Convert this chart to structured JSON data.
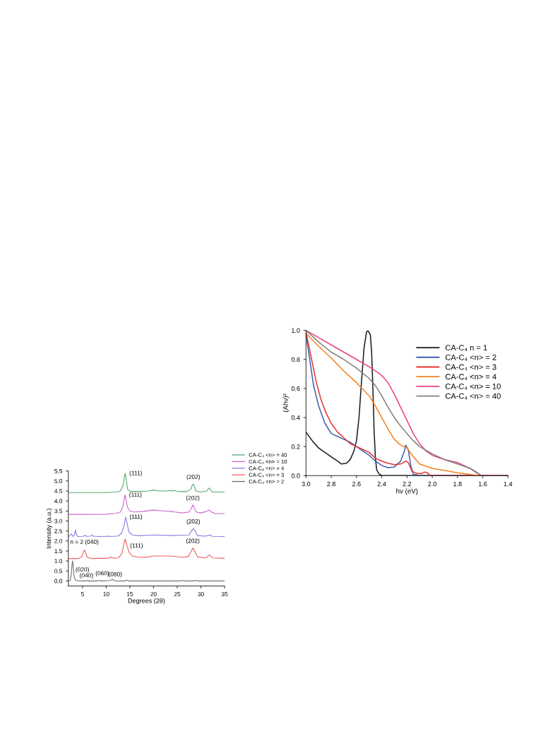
{
  "chart_data": [
    {
      "type": "line",
      "xlabel": "Degrees (2θ)",
      "ylabel": "Intensity (a.u.)",
      "xlim": [
        2,
        35
      ],
      "xticks": [
        5,
        10,
        15,
        20,
        25,
        30,
        35
      ],
      "ylim": [
        -0.25,
        5.5
      ],
      "yticks": [
        {
          "value": 0.0,
          "label": "0.0"
        },
        0.5,
        {
          "value": 1.0,
          "label": "1.0"
        },
        1.5,
        {
          "value": 2.0,
          "label": "2.0"
        },
        2.5,
        {
          "value": 3.0,
          "label": "3.0"
        },
        3.5,
        {
          "value": 4.0,
          "label": "4.0"
        },
        4.5,
        {
          "value": 5.0,
          "label": "5.0"
        },
        5.5
      ],
      "legend": "top right",
      "grid": false,
      "series": [
        {
          "name": "CA-C₄ <n> = 40",
          "color": "#5aa870",
          "x": [
            2.1,
            5,
            10,
            12,
            13,
            13.6,
            13.9,
            14.05,
            14.2,
            14.5,
            15,
            17,
            19,
            20,
            21,
            23,
            23.5,
            24,
            24.5,
            25,
            27,
            27.9,
            28.2,
            28.4,
            28.6,
            28.9,
            30,
            31.3,
            31.6,
            31.8,
            32.0,
            32.4,
            35
          ],
          "values": [
            4.42,
            4.42,
            4.42,
            4.45,
            4.5,
            4.8,
            5.3,
            5.38,
            5.1,
            4.6,
            4.48,
            4.48,
            4.5,
            4.55,
            4.5,
            4.5,
            4.54,
            4.49,
            4.53,
            4.48,
            4.47,
            4.6,
            4.8,
            4.85,
            4.75,
            4.5,
            4.45,
            4.5,
            4.62,
            4.65,
            4.58,
            4.45,
            4.45
          ]
        },
        {
          "name": "CA-C₄ <n> = 10",
          "color": "#cc66cc",
          "x": [
            2.1,
            5,
            10,
            12,
            13,
            13.5,
            13.8,
            14.0,
            14.2,
            14.5,
            15,
            16,
            18,
            20,
            22,
            24,
            24.5,
            26,
            27.5,
            28.0,
            28.3,
            28.6,
            29,
            30,
            31.2,
            31.7,
            32.2,
            33,
            35
          ],
          "values": [
            3.33,
            3.33,
            3.34,
            3.38,
            3.45,
            3.7,
            4.1,
            4.3,
            4.05,
            3.7,
            3.5,
            3.45,
            3.48,
            3.55,
            3.5,
            3.47,
            3.45,
            3.4,
            3.45,
            3.65,
            3.8,
            3.65,
            3.45,
            3.4,
            3.48,
            3.55,
            3.45,
            3.37,
            3.37
          ]
        },
        {
          "name": "CA-C₄ <n> = 4",
          "color": "#8080e0",
          "x": [
            2.1,
            2.6,
            3.0,
            3.3,
            3.5,
            3.7,
            4.0,
            5.0,
            5.5,
            6.0,
            6.8,
            7.0,
            7.3,
            9,
            10.5,
            11,
            12.5,
            13.3,
            13.8,
            14.1,
            14.4,
            14.8,
            15.5,
            17,
            20,
            24,
            27.5,
            28.0,
            28.4,
            28.8,
            29.3,
            31,
            31.8,
            32.5,
            35
          ],
          "values": [
            2.22,
            2.35,
            2.23,
            2.3,
            2.55,
            2.35,
            2.22,
            2.23,
            2.27,
            2.23,
            2.25,
            2.3,
            2.24,
            2.22,
            2.24,
            2.22,
            2.25,
            2.4,
            2.8,
            3.2,
            2.9,
            2.45,
            2.3,
            2.26,
            2.3,
            2.27,
            2.3,
            2.5,
            2.62,
            2.5,
            2.27,
            2.24,
            2.3,
            2.23,
            2.22
          ]
        },
        {
          "name": "CA-C₄ <n> = 3",
          "color": "#f06060",
          "x": [
            2.1,
            4,
            4.8,
            5.2,
            5.4,
            5.6,
            6.0,
            7,
            10.5,
            11,
            11.5,
            12.5,
            13.3,
            13.8,
            14.0,
            14.3,
            14.8,
            15.5,
            17,
            19,
            20,
            22,
            24,
            26,
            27.3,
            27.9,
            28.3,
            28.7,
            29.3,
            31,
            31.8,
            32.5,
            35
          ],
          "values": [
            1.12,
            1.12,
            1.2,
            1.45,
            1.55,
            1.45,
            1.18,
            1.12,
            1.14,
            1.2,
            1.14,
            1.15,
            1.35,
            1.9,
            2.1,
            1.85,
            1.45,
            1.25,
            1.18,
            1.2,
            1.25,
            1.25,
            1.24,
            1.18,
            1.22,
            1.45,
            1.65,
            1.5,
            1.2,
            1.15,
            1.3,
            1.15,
            1.13
          ]
        },
        {
          "name": "CA-C₄ <n> = 2",
          "color": "#707070",
          "x": [
            2.1,
            2.4,
            2.6,
            2.8,
            2.9,
            3.0,
            3.2,
            3.5,
            4,
            5.5,
            5.9,
            6.3,
            8,
            8.5,
            9,
            10.8,
            11.3,
            11.8,
            13.8,
            14.3,
            14.8,
            20,
            25.5,
            26,
            26.5,
            28.3,
            28.8,
            29.3,
            35
          ],
          "values": [
            0.0,
            0.02,
            0.3,
            0.85,
            1.0,
            0.8,
            0.25,
            0.05,
            0.01,
            0.0,
            0.02,
            0.0,
            0.0,
            0.03,
            0.0,
            0.02,
            0.08,
            0.01,
            0.0,
            0.04,
            0.0,
            0.0,
            0.0,
            0.02,
            0.0,
            0.0,
            0.03,
            0.0,
            0.0
          ]
        }
      ],
      "annotations": [
        {
          "text": "(111)",
          "x": 14.05,
          "y": 5.38
        },
        {
          "text": "(202)",
          "x": 28.4,
          "y": 4.85
        },
        {
          "text": "(111)",
          "x": 14.0,
          "y": 4.3
        },
        {
          "text": "(202)",
          "x": 28.3,
          "y": 3.8
        },
        {
          "text": "(111)",
          "x": 14.1,
          "y": 3.2
        },
        {
          "text": "(202)",
          "x": 28.4,
          "y": 2.62
        },
        {
          "text": "(111)",
          "x": 14.0,
          "y": 2.1
        },
        {
          "text": "(202)",
          "x": 28.3,
          "y": 1.65
        },
        {
          "text": "n = 2 (040)",
          "x": 5.4,
          "y": 1.55
        },
        {
          "text": "(020)",
          "x": 2.9,
          "y": 1.0
        },
        {
          "text": "(040)",
          "x": 5.9,
          "y": 0.02
        },
        {
          "text": "(060)",
          "x": 8.5,
          "y": 0.03
        },
        {
          "text": "(080)",
          "x": 11.3,
          "y": 0.08
        }
      ]
    },
    {
      "type": "line",
      "xlabel": "hν (eV)",
      "ylabel": "(Ahν)²",
      "xlim": [
        3.0,
        1.4
      ],
      "xticks": [
        {
          "value": 3.0,
          "label": "3.0"
        },
        {
          "value": 2.8,
          "label": "2.8"
        },
        {
          "value": 2.6,
          "label": "2.6"
        },
        {
          "value": 2.4,
          "label": "2.4"
        },
        {
          "value": 2.2,
          "label": "2.2"
        },
        {
          "value": 2.0,
          "label": "2.0"
        },
        {
          "value": 1.8,
          "label": "1.8"
        },
        {
          "value": 1.6,
          "label": "1.6"
        },
        {
          "value": 1.4,
          "label": "1.4"
        }
      ],
      "ylim": [
        0.0,
        1.0
      ],
      "yticks": [
        {
          "value": 0.0,
          "label": "0.0"
        },
        {
          "value": 0.2,
          "label": "0.2"
        },
        {
          "value": 0.4,
          "label": "0.4"
        },
        {
          "value": 0.6,
          "label": "0.6"
        },
        {
          "value": 0.8,
          "label": "0.8"
        },
        {
          "value": 1.0,
          "label": "1.0"
        }
      ],
      "legend": "top right",
      "grid": false,
      "series": [
        {
          "name": "CA-C₄ n = 1",
          "color": "#1a1a1a",
          "x": [
            3.0,
            2.95,
            2.9,
            2.85,
            2.8,
            2.75,
            2.72,
            2.68,
            2.65,
            2.62,
            2.6,
            2.58,
            2.56,
            2.54,
            2.52,
            2.51,
            2.49,
            2.48,
            2.47,
            2.46,
            2.45,
            2.44,
            2.42,
            2.4,
            2.2,
            1.4
          ],
          "values": [
            0.3,
            0.24,
            0.19,
            0.16,
            0.13,
            0.1,
            0.08,
            0.085,
            0.11,
            0.17,
            0.24,
            0.4,
            0.65,
            0.88,
            0.99,
            1.0,
            0.97,
            0.85,
            0.6,
            0.3,
            0.12,
            0.04,
            0.01,
            0.0,
            0.0,
            0.0
          ]
        },
        {
          "name": "CA-C₄ <n> = 2",
          "color": "#3f5fb0",
          "x": [
            3.0,
            2.97,
            2.94,
            2.9,
            2.85,
            2.8,
            2.75,
            2.7,
            2.65,
            2.6,
            2.55,
            2.5,
            2.45,
            2.4,
            2.35,
            2.3,
            2.25,
            2.22,
            2.21,
            2.19,
            2.17,
            2.15,
            2.1,
            1.4
          ],
          "values": [
            0.97,
            0.8,
            0.62,
            0.48,
            0.36,
            0.29,
            0.27,
            0.25,
            0.23,
            0.2,
            0.17,
            0.14,
            0.1,
            0.07,
            0.055,
            0.06,
            0.1,
            0.17,
            0.21,
            0.18,
            0.07,
            0.01,
            0.0,
            0.0
          ]
        },
        {
          "name": "CA-C₄ <n> = 3",
          "color": "#e8322f",
          "x": [
            3.0,
            2.96,
            2.92,
            2.88,
            2.84,
            2.8,
            2.75,
            2.7,
            2.65,
            2.6,
            2.55,
            2.5,
            2.45,
            2.4,
            2.35,
            2.3,
            2.25,
            2.21,
            2.19,
            2.16,
            2.12,
            2.08,
            2.06,
            2.04,
            2.02,
            2.0,
            1.4
          ],
          "values": [
            0.99,
            0.82,
            0.65,
            0.52,
            0.43,
            0.36,
            0.3,
            0.26,
            0.22,
            0.2,
            0.18,
            0.16,
            0.12,
            0.1,
            0.085,
            0.075,
            0.08,
            0.1,
            0.09,
            0.03,
            0.015,
            0.015,
            0.025,
            0.02,
            0.003,
            0.0,
            0.0
          ]
        },
        {
          "name": "CA-C₄ <n> = 4",
          "color": "#f7801f",
          "x": [
            3.0,
            2.9,
            2.8,
            2.7,
            2.6,
            2.5,
            2.45,
            2.4,
            2.35,
            2.3,
            2.25,
            2.2,
            2.15,
            2.1,
            2.0,
            1.9,
            1.8,
            1.7,
            1.65,
            1.6,
            1.4
          ],
          "values": [
            0.98,
            0.89,
            0.81,
            0.72,
            0.64,
            0.55,
            0.48,
            0.4,
            0.32,
            0.25,
            0.21,
            0.19,
            0.13,
            0.08,
            0.05,
            0.035,
            0.02,
            0.008,
            0.003,
            0.0,
            0.0
          ]
        },
        {
          "name": "CA-C₄ <n> = 10",
          "color": "#ec3f8a",
          "x": [
            3.0,
            2.9,
            2.8,
            2.7,
            2.6,
            2.5,
            2.45,
            2.4,
            2.35,
            2.3,
            2.25,
            2.2,
            2.15,
            2.1,
            2.05,
            2.0,
            1.9,
            1.8,
            1.75,
            1.7,
            1.65,
            1.62,
            1.6,
            1.4
          ],
          "values": [
            1.0,
            0.95,
            0.9,
            0.85,
            0.8,
            0.75,
            0.72,
            0.69,
            0.64,
            0.56,
            0.47,
            0.38,
            0.29,
            0.22,
            0.17,
            0.14,
            0.11,
            0.09,
            0.07,
            0.05,
            0.02,
            0.005,
            0.0,
            0.0
          ]
        },
        {
          "name": "CA-C₄ <n> = 40",
          "color": "#808080",
          "x": [
            3.0,
            2.9,
            2.8,
            2.7,
            2.6,
            2.5,
            2.45,
            2.4,
            2.35,
            2.3,
            2.25,
            2.2,
            2.15,
            2.1,
            2.0,
            1.9,
            1.8,
            1.7,
            1.65,
            1.62,
            1.6,
            1.4
          ],
          "values": [
            1.0,
            0.92,
            0.85,
            0.8,
            0.74,
            0.67,
            0.62,
            0.55,
            0.47,
            0.4,
            0.34,
            0.29,
            0.24,
            0.2,
            0.15,
            0.11,
            0.08,
            0.05,
            0.025,
            0.005,
            0.0,
            0.0
          ]
        }
      ]
    }
  ]
}
